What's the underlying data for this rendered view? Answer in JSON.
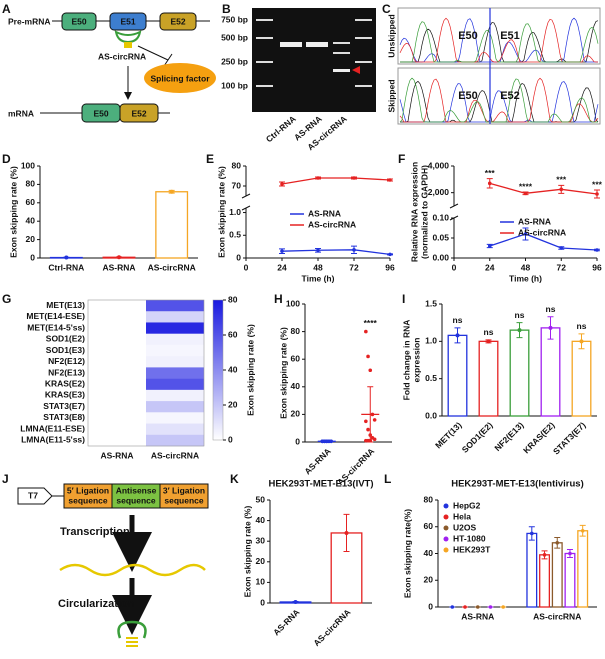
{
  "panel_labels": [
    "A",
    "B",
    "C",
    "D",
    "E",
    "F",
    "G",
    "H",
    "I",
    "J",
    "K",
    "L"
  ],
  "diagram_a": {
    "pre_mrna": "Pre-mRNA",
    "exons_pre": [
      "E50",
      "E51",
      "E52"
    ],
    "circ": "AS-circRNA",
    "factor": "Splicing factor",
    "mrna": "mRNA",
    "exons_mature": [
      "E50",
      "E52"
    ]
  },
  "gel_b": {
    "markers": [
      "750 bp",
      "500 bp",
      "250 bp",
      "100 bp"
    ],
    "lanes": [
      "Ctrl-RNA",
      "AS-RNA",
      "AS-circRNA"
    ]
  },
  "chromatogram_c": {
    "rows": [
      "Unskipped",
      "Skipped"
    ],
    "top_exons": [
      "E50",
      "E51"
    ],
    "bottom_exons": [
      "E50",
      "E52"
    ]
  },
  "diagram_j": {
    "promoter": "T7",
    "blocks": [
      [
        "5′ Ligation",
        "sequence"
      ],
      [
        "Antisense",
        "sequence"
      ],
      [
        "3′ Ligation",
        "sequence"
      ]
    ],
    "step1": "Transcription",
    "step2": "Circularization"
  },
  "chart_data": [
    {
      "type": "bar",
      "ylabel": [
        "Exon skipping rate (%)"
      ],
      "categories": [
        "Ctrl-RNA",
        "AS-RNA",
        "AS-circRNA"
      ],
      "values": [
        0.5,
        0.8,
        72
      ],
      "errors": [
        0.3,
        0.4,
        1.5
      ],
      "colors": [
        "#2233dd",
        "#e52222",
        "#f5a623"
      ],
      "ylim": [
        0,
        100
      ],
      "yticks": [
        0,
        20,
        40,
        60,
        80,
        100
      ]
    },
    {
      "type": "line",
      "ylabel": [
        "Exon skipping rate (%)"
      ],
      "xlabel": "Time (h)",
      "x": [
        24,
        48,
        72,
        96
      ],
      "xlim": [
        0,
        96
      ],
      "xticks": [
        0,
        24,
        48,
        72,
        96
      ],
      "ylim": [
        0,
        1.1
      ],
      "yticks": [
        0,
        0.5,
        {
          "value": 1,
          "label": "1.0"
        }
      ],
      "ylim_upper": [
        65,
        80
      ],
      "yticks_upper": [
        70,
        80
      ],
      "series": [
        {
          "name": "AS-RNA",
          "color": "#2233dd",
          "axis": "lower",
          "values": [
            0.15,
            0.17,
            0.18,
            0.08
          ],
          "errors": [
            0.05,
            0.04,
            0.08,
            0.01
          ]
        },
        {
          "name": "AS-circRNA",
          "color": "#e52222",
          "axis": "upper",
          "values": [
            71,
            74,
            74,
            73
          ],
          "errors": [
            1,
            0.5,
            0.5,
            0.5
          ]
        }
      ]
    },
    {
      "type": "line",
      "ylabel": [
        "Relative RNA expression",
        "(normalized to GAPDH)"
      ],
      "xlabel": "Time (h)",
      "x": [
        24,
        48,
        72,
        96
      ],
      "xlim": [
        0,
        96
      ],
      "xticks": [
        0,
        24,
        48,
        72,
        96
      ],
      "ylim": [
        0,
        0.1
      ],
      "yticks": [
        {
          "value": 0,
          "label": "0.00"
        },
        0.05,
        {
          "value": 0.1,
          "label": "0.10"
        }
      ],
      "ylim_upper": [
        1000,
        4000
      ],
      "yticks_upper": [
        {
          "value": 2000,
          "label": "2,000"
        },
        {
          "value": 4000,
          "label": "4,000"
        }
      ],
      "series": [
        {
          "name": "AS-RNA",
          "color": "#2233dd",
          "axis": "lower",
          "values": [
            0.03,
            0.06,
            0.025,
            0.02
          ],
          "errors": [
            0.004,
            0.015,
            0.003,
            0.002
          ]
        },
        {
          "name": "AS-circRNA",
          "color": "#e52222",
          "axis": "upper",
          "values": [
            2700,
            1950,
            2250,
            1900
          ],
          "errors": [
            350,
            100,
            300,
            300
          ]
        }
      ],
      "annotations": [
        "***",
        "****",
        "***",
        "***"
      ]
    },
    {
      "type": "heatmap",
      "rows": [
        "MET(E13)",
        "MET(E14-ESE)",
        "MET(E14-5'ss)",
        "SOD1(E2)",
        "SOD1(E3)",
        "NF2(E12)",
        "NF2(E13)",
        "KRAS(E2)",
        "KRAS(E3)",
        "STAT3(E7)",
        "STAT3(E8)",
        "LMNA(E11-ESE)",
        "LMNA(E11-5'ss)"
      ],
      "columns": [
        "AS-RNA",
        "AS-circRNA"
      ],
      "values": [
        [
          0,
          60
        ],
        [
          0,
          15
        ],
        [
          0,
          75
        ],
        [
          0,
          5
        ],
        [
          0,
          3
        ],
        [
          0,
          5
        ],
        [
          0,
          50
        ],
        [
          0,
          60
        ],
        [
          0,
          5
        ],
        [
          0,
          20
        ],
        [
          0,
          3
        ],
        [
          0,
          10
        ],
        [
          0,
          20
        ]
      ],
      "colormap": [
        "#ffffff",
        "#1a1ae0"
      ],
      "clim": [
        0,
        80
      ],
      "cticks": [
        0,
        20,
        40,
        60,
        80
      ],
      "clabel": "Exon skipping rate (%)"
    },
    {
      "type": "dot",
      "ylabel": [
        "Exon skipping rate (%)"
      ],
      "categories": [
        "AS-RNA",
        "AS-circRNA"
      ],
      "colors": [
        "#2233dd",
        "#e52222"
      ],
      "points": [
        [
          0.5,
          0.5,
          0.5,
          0.5,
          0.5,
          0.5,
          0.5,
          0.5,
          0.5,
          0.5,
          0.5,
          0.5,
          0.5
        ],
        [
          80,
          62,
          52,
          20,
          16,
          15,
          9,
          5,
          3,
          2,
          1,
          1,
          1
        ]
      ],
      "means": [
        0.5,
        20
      ],
      "errors": [
        0.2,
        20
      ],
      "annotation": "****",
      "ylim": [
        0,
        100
      ],
      "yticks": [
        0,
        20,
        40,
        60,
        80,
        100
      ]
    },
    {
      "type": "bar",
      "ylabel": [
        "Fold change in RNA",
        "expression"
      ],
      "categories": [
        "MET(13)",
        "SOD1(E2)",
        "NF2(E13)",
        "KRAS(E2)",
        "STAT3(E7)"
      ],
      "values": [
        1.08,
        1.0,
        1.15,
        1.18,
        1.0
      ],
      "errors": [
        0.1,
        0.02,
        0.1,
        0.15,
        0.1
      ],
      "colors": [
        "#2233dd",
        "#e52222",
        "#3a9e3a",
        "#a020f0",
        "#f5a623"
      ],
      "annotations": [
        "ns",
        "ns",
        "ns",
        "ns",
        "ns"
      ],
      "ylim": [
        0,
        1.5
      ],
      "yticks": [
        {
          "value": 0,
          "label": "0.0"
        },
        0.5,
        {
          "value": 1,
          "label": "1.0"
        },
        1.5
      ]
    },
    {
      "type": "bar",
      "title": "HEK293T-MET-E13(IVT)",
      "ylabel": [
        "Exon skipping rate (%)"
      ],
      "categories": [
        "AS-RNA",
        "AS-circRNA"
      ],
      "values": [
        0.5,
        34
      ],
      "errors": [
        0.2,
        9
      ],
      "colors": [
        "#2233dd",
        "#e52222"
      ],
      "ylim": [
        0,
        50
      ],
      "yticks": [
        0,
        10,
        20,
        30,
        40,
        50
      ]
    },
    {
      "type": "bar",
      "title": "HEK293T-MET-E13(lentivirus)",
      "ylabel": [
        "Exon skipping rate(%)"
      ],
      "categories": [
        "AS-RNA",
        "AS-circRNA"
      ],
      "series": [
        {
          "name": "HepG2",
          "color": "#2233dd",
          "values": [
            0,
            55
          ],
          "errors": [
            0,
            5
          ]
        },
        {
          "name": "Hela",
          "color": "#e52222",
          "values": [
            0,
            39
          ],
          "errors": [
            0,
            3
          ]
        },
        {
          "name": "U2OS",
          "color": "#8b5a2b",
          "values": [
            0,
            48
          ],
          "errors": [
            0,
            4
          ]
        },
        {
          "name": "HT-1080",
          "color": "#a020f0",
          "values": [
            0,
            40
          ],
          "errors": [
            0,
            3
          ]
        },
        {
          "name": "HEK293T",
          "color": "#f5a623",
          "values": [
            0,
            57
          ],
          "errors": [
            0,
            4
          ]
        }
      ],
      "ylim": [
        0,
        80
      ],
      "yticks": [
        0,
        20,
        40,
        60,
        80
      ]
    }
  ]
}
